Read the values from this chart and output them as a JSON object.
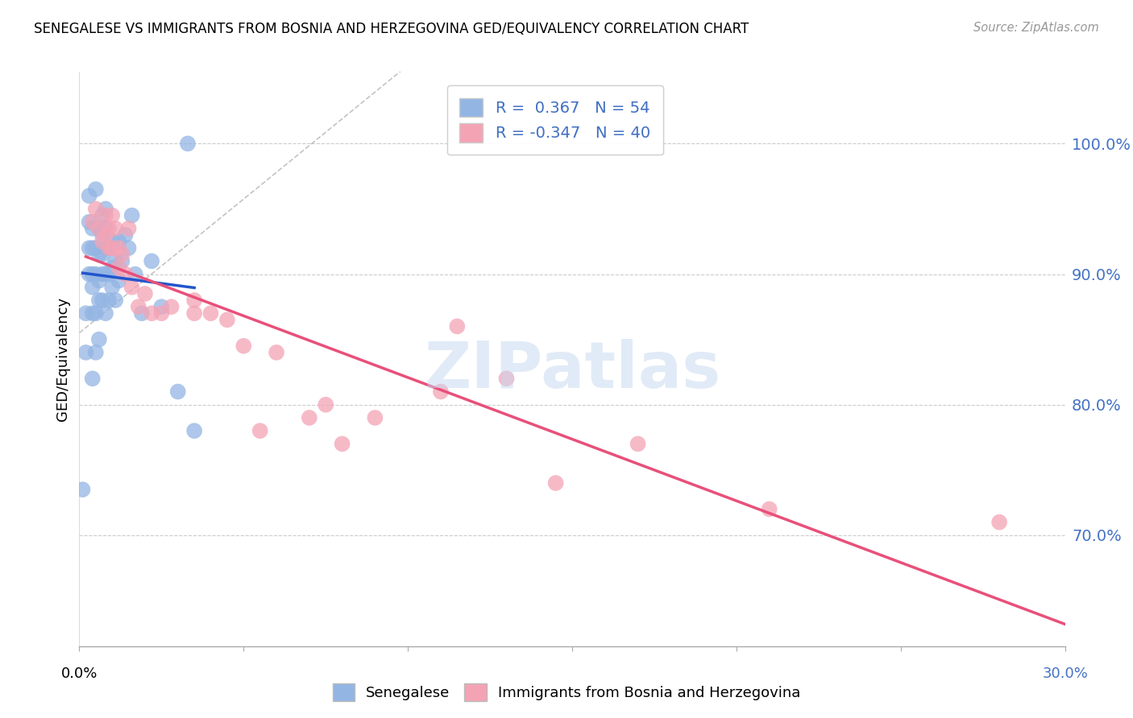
{
  "title": "SENEGALESE VS IMMIGRANTS FROM BOSNIA AND HERZEGOVINA GED/EQUIVALENCY CORRELATION CHART",
  "source": "Source: ZipAtlas.com",
  "ylabel": "GED/Equivalency",
  "ytick_labels": [
    "70.0%",
    "80.0%",
    "90.0%",
    "100.0%"
  ],
  "ytick_values": [
    0.7,
    0.8,
    0.9,
    1.0
  ],
  "xmin": 0.0,
  "xmax": 0.3,
  "ymin": 0.615,
  "ymax": 1.055,
  "legend_blue_r": "0.367",
  "legend_blue_n": "54",
  "legend_pink_r": "-0.347",
  "legend_pink_n": "40",
  "blue_color": "#93b5e3",
  "pink_color": "#f4a3b5",
  "blue_line_color": "#2255cc",
  "pink_line_color": "#e8507a",
  "watermark": "ZIPatlas",
  "blue_scatter_x": [
    0.001,
    0.002,
    0.002,
    0.003,
    0.003,
    0.003,
    0.004,
    0.004,
    0.004,
    0.004,
    0.004,
    0.005,
    0.005,
    0.005,
    0.005,
    0.005,
    0.006,
    0.006,
    0.006,
    0.006,
    0.007,
    0.007,
    0.007,
    0.007,
    0.007,
    0.008,
    0.008,
    0.008,
    0.008,
    0.008,
    0.009,
    0.009,
    0.009,
    0.01,
    0.01,
    0.01,
    0.011,
    0.011,
    0.012,
    0.012,
    0.013,
    0.014,
    0.015,
    0.016,
    0.017,
    0.019,
    0.022,
    0.025,
    0.03,
    0.035,
    0.004,
    0.003,
    0.006,
    0.033
  ],
  "blue_scatter_y": [
    0.735,
    0.84,
    0.87,
    0.9,
    0.92,
    0.94,
    0.87,
    0.89,
    0.9,
    0.92,
    0.935,
    0.84,
    0.87,
    0.9,
    0.92,
    0.965,
    0.88,
    0.895,
    0.915,
    0.935,
    0.9,
    0.915,
    0.93,
    0.945,
    0.88,
    0.87,
    0.9,
    0.92,
    0.935,
    0.95,
    0.88,
    0.9,
    0.92,
    0.89,
    0.905,
    0.925,
    0.88,
    0.91,
    0.895,
    0.925,
    0.91,
    0.93,
    0.92,
    0.945,
    0.9,
    0.87,
    0.91,
    0.875,
    0.81,
    0.78,
    0.82,
    0.96,
    0.85,
    1.0
  ],
  "pink_scatter_x": [
    0.004,
    0.005,
    0.006,
    0.007,
    0.008,
    0.008,
    0.009,
    0.009,
    0.01,
    0.01,
    0.011,
    0.012,
    0.012,
    0.013,
    0.014,
    0.015,
    0.016,
    0.018,
    0.02,
    0.022,
    0.025,
    0.028,
    0.035,
    0.04,
    0.05,
    0.06,
    0.075,
    0.09,
    0.115,
    0.13,
    0.035,
    0.045,
    0.055,
    0.07,
    0.08,
    0.11,
    0.145,
    0.17,
    0.21,
    0.28
  ],
  "pink_scatter_y": [
    0.94,
    0.95,
    0.935,
    0.925,
    0.945,
    0.93,
    0.92,
    0.935,
    0.945,
    0.92,
    0.935,
    0.92,
    0.905,
    0.915,
    0.9,
    0.935,
    0.89,
    0.875,
    0.885,
    0.87,
    0.87,
    0.875,
    0.88,
    0.87,
    0.845,
    0.84,
    0.8,
    0.79,
    0.86,
    0.82,
    0.87,
    0.865,
    0.78,
    0.79,
    0.77,
    0.81,
    0.74,
    0.77,
    0.72,
    0.71
  ]
}
